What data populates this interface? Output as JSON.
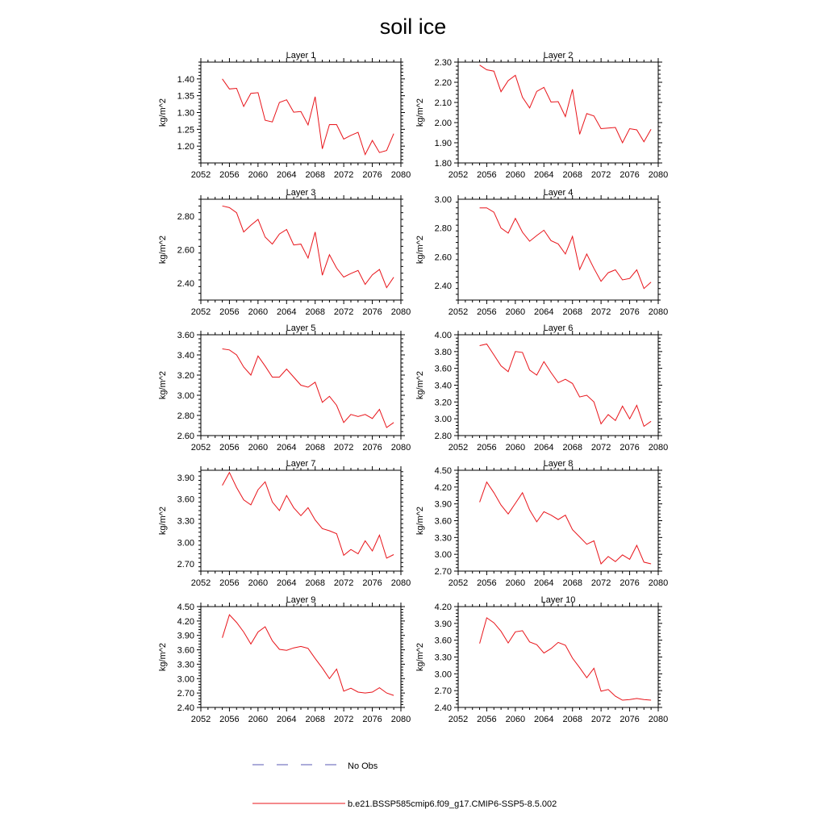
{
  "figure": {
    "title": "soil ice",
    "ylabel": "kg/m^2",
    "legend": {
      "obs_label": "No Obs",
      "obs_color": "#5a5ab4",
      "model_label": "b.e21.BSSP585cmip6.f09_g17.CMIP6-SSP5-8.5.002",
      "model_color": "#e8141a"
    }
  },
  "chart_data": [
    {
      "type": "line",
      "title": "Layer 1",
      "ylabel": "kg/m^2",
      "xlim": [
        2052,
        2080
      ],
      "ylim": [
        1.15,
        1.45
      ],
      "xticks": [
        2052,
        2056,
        2060,
        2064,
        2068,
        2072,
        2076,
        2080
      ],
      "yticks": [
        1.2,
        1.25,
        1.3,
        1.35,
        1.4
      ],
      "x": [
        2055,
        2056,
        2057,
        2058,
        2059,
        2060,
        2061,
        2062,
        2063,
        2064,
        2065,
        2066,
        2067,
        2068,
        2069,
        2070,
        2071,
        2072,
        2073,
        2074,
        2075,
        2076,
        2077,
        2078,
        2079
      ],
      "series": [
        {
          "name": "b.e21.BSSP585cmip6.f09_g17.CMIP6-SSP5-8.5.002",
          "values": [
            1.4,
            1.37,
            1.372,
            1.318,
            1.357,
            1.359,
            1.277,
            1.272,
            1.33,
            1.338,
            1.301,
            1.303,
            1.263,
            1.347,
            1.192,
            1.264,
            1.264,
            1.221,
            1.232,
            1.241,
            1.175,
            1.217,
            1.181,
            1.187,
            1.237
          ]
        }
      ]
    },
    {
      "type": "line",
      "title": "Layer 2",
      "ylabel": "kg/m^2",
      "xlim": [
        2052,
        2080
      ],
      "ylim": [
        1.8,
        2.3
      ],
      "xticks": [
        2052,
        2056,
        2060,
        2064,
        2068,
        2072,
        2076,
        2080
      ],
      "yticks": [
        1.8,
        1.9,
        2.0,
        2.1,
        2.2,
        2.3
      ],
      "x": [
        2055,
        2056,
        2057,
        2058,
        2059,
        2060,
        2061,
        2062,
        2063,
        2064,
        2065,
        2066,
        2067,
        2068,
        2069,
        2070,
        2071,
        2072,
        2073,
        2074,
        2075,
        2076,
        2077,
        2078,
        2079
      ],
      "series": [
        {
          "name": "b.e21.BSSP585cmip6.f09_g17.CMIP6-SSP5-8.5.002",
          "values": [
            2.285,
            2.262,
            2.255,
            2.153,
            2.208,
            2.235,
            2.126,
            2.073,
            2.155,
            2.175,
            2.102,
            2.104,
            2.03,
            2.165,
            1.942,
            2.045,
            2.033,
            1.97,
            1.973,
            1.976,
            1.9,
            1.97,
            1.964,
            1.905,
            1.967
          ]
        }
      ]
    },
    {
      "type": "line",
      "title": "Layer 3",
      "ylabel": "kg/m^2",
      "xlim": [
        2052,
        2080
      ],
      "ylim": [
        2.3,
        2.9
      ],
      "xticks": [
        2052,
        2056,
        2060,
        2064,
        2068,
        2072,
        2076,
        2080
      ],
      "yticks": [
        2.4,
        2.6,
        2.8
      ],
      "x": [
        2055,
        2056,
        2057,
        2058,
        2059,
        2060,
        2061,
        2062,
        2063,
        2064,
        2065,
        2066,
        2067,
        2068,
        2069,
        2070,
        2071,
        2072,
        2073,
        2074,
        2075,
        2076,
        2077,
        2078,
        2079
      ],
      "series": [
        {
          "name": "b.e21.BSSP585cmip6.f09_g17.CMIP6-SSP5-8.5.002",
          "values": [
            2.86,
            2.85,
            2.82,
            2.705,
            2.745,
            2.78,
            2.675,
            2.633,
            2.693,
            2.72,
            2.628,
            2.633,
            2.55,
            2.705,
            2.448,
            2.57,
            2.49,
            2.437,
            2.458,
            2.476,
            2.393,
            2.45,
            2.482,
            2.374,
            2.436
          ]
        }
      ]
    },
    {
      "type": "line",
      "title": "Layer 4",
      "ylabel": "kg/m^2",
      "xlim": [
        2052,
        2080
      ],
      "ylim": [
        2.3,
        3.0
      ],
      "xticks": [
        2052,
        2056,
        2060,
        2064,
        2068,
        2072,
        2076,
        2080
      ],
      "yticks": [
        2.4,
        2.6,
        2.8,
        3.0
      ],
      "x": [
        2055,
        2056,
        2057,
        2058,
        2059,
        2060,
        2061,
        2062,
        2063,
        2064,
        2065,
        2066,
        2067,
        2068,
        2069,
        2070,
        2071,
        2072,
        2073,
        2074,
        2075,
        2076,
        2077,
        2078,
        2079
      ],
      "series": [
        {
          "name": "b.e21.BSSP585cmip6.f09_g17.CMIP6-SSP5-8.5.002",
          "values": [
            2.94,
            2.94,
            2.91,
            2.8,
            2.765,
            2.867,
            2.771,
            2.708,
            2.748,
            2.785,
            2.713,
            2.69,
            2.62,
            2.742,
            2.512,
            2.62,
            2.52,
            2.43,
            2.49,
            2.51,
            2.44,
            2.45,
            2.51,
            2.38,
            2.425
          ]
        }
      ]
    },
    {
      "type": "line",
      "title": "Layer 5",
      "ylabel": "kg/m^2",
      "xlim": [
        2052,
        2080
      ],
      "ylim": [
        2.6,
        3.6
      ],
      "xticks": [
        2052,
        2056,
        2060,
        2064,
        2068,
        2072,
        2076,
        2080
      ],
      "yticks": [
        2.6,
        2.8,
        3.0,
        3.2,
        3.4,
        3.6
      ],
      "x": [
        2055,
        2056,
        2057,
        2058,
        2059,
        2060,
        2061,
        2062,
        2063,
        2064,
        2065,
        2066,
        2067,
        2068,
        2069,
        2070,
        2071,
        2072,
        2073,
        2074,
        2075,
        2076,
        2077,
        2078,
        2079
      ],
      "series": [
        {
          "name": "b.e21.BSSP585cmip6.f09_g17.CMIP6-SSP5-8.5.002",
          "values": [
            3.46,
            3.45,
            3.4,
            3.28,
            3.2,
            3.39,
            3.29,
            3.18,
            3.18,
            3.26,
            3.18,
            3.1,
            3.08,
            3.13,
            2.93,
            2.99,
            2.9,
            2.73,
            2.81,
            2.79,
            2.81,
            2.77,
            2.86,
            2.68,
            2.73
          ]
        }
      ]
    },
    {
      "type": "line",
      "title": "Layer 6",
      "ylabel": "kg/m^2",
      "xlim": [
        2052,
        2080
      ],
      "ylim": [
        2.8,
        4.0
      ],
      "xticks": [
        2052,
        2056,
        2060,
        2064,
        2068,
        2072,
        2076,
        2080
      ],
      "yticks": [
        2.8,
        3.0,
        3.2,
        3.4,
        3.6,
        3.8,
        4.0
      ],
      "x": [
        2055,
        2056,
        2057,
        2058,
        2059,
        2060,
        2061,
        2062,
        2063,
        2064,
        2065,
        2066,
        2067,
        2068,
        2069,
        2070,
        2071,
        2072,
        2073,
        2074,
        2075,
        2076,
        2077,
        2078,
        2079
      ],
      "series": [
        {
          "name": "b.e21.BSSP585cmip6.f09_g17.CMIP6-SSP5-8.5.002",
          "values": [
            3.87,
            3.89,
            3.76,
            3.63,
            3.56,
            3.8,
            3.79,
            3.58,
            3.52,
            3.68,
            3.55,
            3.43,
            3.47,
            3.42,
            3.26,
            3.28,
            3.2,
            2.94,
            3.05,
            2.98,
            3.15,
            3.0,
            3.16,
            2.91,
            2.97
          ]
        }
      ]
    },
    {
      "type": "line",
      "title": "Layer 7",
      "ylabel": "kg/m^2",
      "xlim": [
        2052,
        2080
      ],
      "ylim": [
        2.6,
        4.0
      ],
      "xticks": [
        2052,
        2056,
        2060,
        2064,
        2068,
        2072,
        2076,
        2080
      ],
      "yticks": [
        2.7,
        3.0,
        3.3,
        3.6,
        3.9
      ],
      "x": [
        2055,
        2056,
        2057,
        2058,
        2059,
        2060,
        2061,
        2062,
        2063,
        2064,
        2065,
        2066,
        2067,
        2068,
        2069,
        2070,
        2071,
        2072,
        2073,
        2074,
        2075,
        2076,
        2077,
        2078,
        2079
      ],
      "series": [
        {
          "name": "b.e21.BSSP585cmip6.f09_g17.CMIP6-SSP5-8.5.002",
          "values": [
            3.79,
            3.97,
            3.76,
            3.59,
            3.52,
            3.73,
            3.84,
            3.56,
            3.44,
            3.65,
            3.48,
            3.37,
            3.48,
            3.31,
            3.19,
            3.16,
            3.12,
            2.82,
            2.9,
            2.84,
            3.02,
            2.88,
            3.1,
            2.78,
            2.83
          ]
        }
      ]
    },
    {
      "type": "line",
      "title": "Layer 8",
      "ylabel": "kg/m^2",
      "xlim": [
        2052,
        2080
      ],
      "ylim": [
        2.7,
        4.5
      ],
      "xticks": [
        2052,
        2056,
        2060,
        2064,
        2068,
        2072,
        2076,
        2080
      ],
      "yticks": [
        2.7,
        3.0,
        3.3,
        3.6,
        3.9,
        4.2,
        4.5
      ],
      "x": [
        2055,
        2056,
        2057,
        2058,
        2059,
        2060,
        2061,
        2062,
        2063,
        2064,
        2065,
        2066,
        2067,
        2068,
        2069,
        2070,
        2071,
        2072,
        2073,
        2074,
        2075,
        2076,
        2077,
        2078,
        2079
      ],
      "series": [
        {
          "name": "b.e21.BSSP585cmip6.f09_g17.CMIP6-SSP5-8.5.002",
          "values": [
            3.93,
            4.29,
            4.1,
            3.88,
            3.72,
            3.91,
            4.1,
            3.79,
            3.58,
            3.76,
            3.7,
            3.62,
            3.7,
            3.44,
            3.31,
            3.18,
            3.24,
            2.83,
            2.96,
            2.87,
            2.99,
            2.91,
            3.16,
            2.86,
            2.83
          ]
        }
      ]
    },
    {
      "type": "line",
      "title": "Layer 9",
      "ylabel": "kg/m^2",
      "xlim": [
        2052,
        2080
      ],
      "ylim": [
        2.4,
        4.5
      ],
      "xticks": [
        2052,
        2056,
        2060,
        2064,
        2068,
        2072,
        2076,
        2080
      ],
      "yticks": [
        2.4,
        2.7,
        3.0,
        3.3,
        3.6,
        3.9,
        4.2,
        4.5
      ],
      "x": [
        2055,
        2056,
        2057,
        2058,
        2059,
        2060,
        2061,
        2062,
        2063,
        2064,
        2065,
        2066,
        2067,
        2068,
        2069,
        2070,
        2071,
        2072,
        2073,
        2074,
        2075,
        2076,
        2077,
        2078,
        2079
      ],
      "series": [
        {
          "name": "b.e21.BSSP585cmip6.f09_g17.CMIP6-SSP5-8.5.002",
          "values": [
            3.85,
            4.33,
            4.17,
            3.97,
            3.72,
            3.97,
            4.08,
            3.79,
            3.61,
            3.59,
            3.64,
            3.67,
            3.63,
            3.42,
            3.22,
            3.0,
            3.2,
            2.74,
            2.8,
            2.72,
            2.7,
            2.72,
            2.81,
            2.7,
            2.65
          ]
        }
      ]
    },
    {
      "type": "line",
      "title": "Layer 10",
      "ylabel": "kg/m^2",
      "xlim": [
        2052,
        2080
      ],
      "ylim": [
        2.4,
        4.2
      ],
      "xticks": [
        2052,
        2056,
        2060,
        2064,
        2068,
        2072,
        2076,
        2080
      ],
      "yticks": [
        2.4,
        2.7,
        3.0,
        3.3,
        3.6,
        3.9,
        4.2
      ],
      "x": [
        2055,
        2056,
        2057,
        2058,
        2059,
        2060,
        2061,
        2062,
        2063,
        2064,
        2065,
        2066,
        2067,
        2068,
        2069,
        2070,
        2071,
        2072,
        2073,
        2074,
        2075,
        2076,
        2077,
        2078,
        2079
      ],
      "series": [
        {
          "name": "b.e21.BSSP585cmip6.f09_g17.CMIP6-SSP5-8.5.002",
          "values": [
            3.54,
            4.0,
            3.91,
            3.76,
            3.55,
            3.75,
            3.77,
            3.57,
            3.52,
            3.37,
            3.45,
            3.56,
            3.51,
            3.28,
            3.11,
            2.93,
            3.1,
            2.69,
            2.72,
            2.6,
            2.53,
            2.54,
            2.56,
            2.54,
            2.53
          ]
        }
      ]
    }
  ]
}
